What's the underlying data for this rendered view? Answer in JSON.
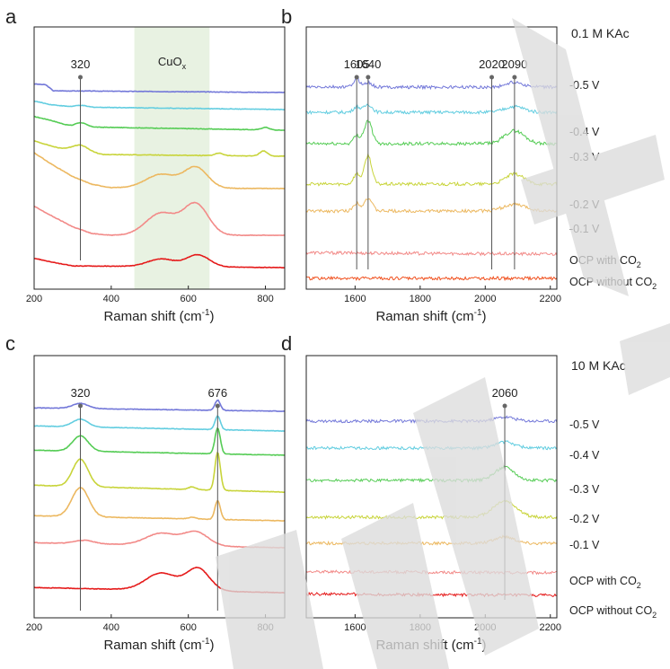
{
  "figure": {
    "watermark_text": "ACCEPTED",
    "panels": [
      {
        "id": "a",
        "label": "a",
        "xlabel": "Raman shift (cm",
        "xlabel_sup": "-1",
        "xlabel_end": ")",
        "xlim": [
          200,
          850
        ],
        "xticks": [
          "200",
          "400",
          "600",
          "800"
        ],
        "region": {
          "from": 460,
          "to": 655,
          "label": "CuO",
          "label_sub": "x"
        },
        "markers": [
          {
            "label": "320",
            "x": 320
          }
        ],
        "side_labels": [],
        "condition": ""
      },
      {
        "id": "b",
        "label": "b",
        "xlabel": "Raman shift (cm",
        "xlabel_sup": "-1",
        "xlabel_end": ")",
        "xlim": [
          1450,
          2220
        ],
        "xticks": [
          "1600",
          "1800",
          "2000",
          "2200"
        ],
        "markers": [
          {
            "label": "1605",
            "x": 1605
          },
          {
            "label": "1640",
            "x": 1640
          },
          {
            "label": "2020",
            "x": 2020
          },
          {
            "label": "2090",
            "x": 2090
          }
        ],
        "side_labels": [
          {
            "text": "-0.5 V",
            "sub": ""
          },
          {
            "text": "-0.4 V",
            "sub": ""
          },
          {
            "text": "-0.3 V",
            "sub": ""
          },
          {
            "text": "-0.2 V",
            "sub": ""
          },
          {
            "text": "-0.1 V",
            "sub": ""
          },
          {
            "text": "OCP with CO",
            "sub": "2"
          },
          {
            "text": "OCP without CO",
            "sub": "2"
          }
        ],
        "condition": "0.1 M KAc"
      },
      {
        "id": "c",
        "label": "c",
        "xlabel": "Raman shift (cm",
        "xlabel_sup": "-1",
        "xlabel_end": ")",
        "xlim": [
          200,
          850
        ],
        "xticks": [
          "200",
          "400",
          "600",
          "800"
        ],
        "markers": [
          {
            "label": "320",
            "x": 320
          },
          {
            "label": "676",
            "x": 676
          }
        ],
        "side_labels": [],
        "condition": ""
      },
      {
        "id": "d",
        "label": "d",
        "xlabel": "Raman shift (cm",
        "xlabel_sup": "-1",
        "xlabel_end": ")",
        "xlim": [
          1450,
          2220
        ],
        "xticks": [
          "1600",
          "1800",
          "2000",
          "2200"
        ],
        "markers": [
          {
            "label": "2060",
            "x": 2060
          }
        ],
        "side_labels": [
          {
            "text": "-0.5 V",
            "sub": ""
          },
          {
            "text": "-0.4 V",
            "sub": ""
          },
          {
            "text": "-0.3 V",
            "sub": ""
          },
          {
            "text": "-0.2 V",
            "sub": ""
          },
          {
            "text": "-0.1 V",
            "sub": ""
          },
          {
            "text": "OCP with CO",
            "sub": "2"
          },
          {
            "text": "OCP without CO",
            "sub": "2"
          }
        ],
        "condition": "10 M KAc"
      }
    ]
  },
  "chart_data": [
    {
      "type": "line",
      "panel": "a",
      "title": "",
      "xlabel": "Raman shift (cm-1)",
      "ylabel": "",
      "xlim": [
        200,
        850
      ],
      "colors": [
        "#7378d9",
        "#62cde0",
        "#55cc55",
        "#c8d43a",
        "#ecb860",
        "#f28a88",
        "#e51a1a"
      ],
      "series": [
        {
          "name": "-0.5 V",
          "offset": 6.4,
          "base": [
            [
              200,
              0.5
            ],
            [
              230,
              0.45
            ],
            [
              250,
              0.1
            ],
            [
              850,
              0
            ]
          ],
          "peaks": []
        },
        {
          "name": "-0.4 V",
          "offset": 5.6,
          "base": [
            [
              200,
              0.5
            ],
            [
              240,
              0.3
            ],
            [
              300,
              0.15
            ],
            [
              850,
              0
            ]
          ],
          "peaks": [
            [
              320,
              0.1,
              15
            ]
          ]
        },
        {
          "name": "-0.3 V",
          "offset": 4.55,
          "base": [
            [
              200,
              0.8
            ],
            [
              240,
              0.6
            ],
            [
              300,
              0.2
            ],
            [
              850,
              0
            ]
          ],
          "peaks": [
            [
              320,
              0.25,
              15
            ],
            [
              800,
              0.15,
              10
            ]
          ]
        },
        {
          "name": "-0.2 V",
          "offset": 3.25,
          "base": [
            [
              200,
              0.9
            ],
            [
              260,
              0.5
            ],
            [
              380,
              0.1
            ],
            [
              850,
              0
            ]
          ],
          "peaks": [
            [
              320,
              0.35,
              20
            ],
            [
              680,
              0.15,
              10
            ],
            [
              795,
              0.3,
              10
            ]
          ]
        },
        {
          "name": "-0.1 V",
          "offset": 1.85,
          "base": [
            [
              200,
              2.1
            ],
            [
              240,
              1.5
            ],
            [
              300,
              0.7
            ],
            [
              350,
              0.25
            ],
            [
              400,
              0.05
            ],
            [
              850,
              0
            ]
          ],
          "peaks": [
            [
              530,
              0.8,
              40
            ],
            [
              620,
              1.2,
              30
            ]
          ]
        },
        {
          "name": "OCP with CO2",
          "offset": 0.7,
          "base": [
            [
              200,
              1.7
            ],
            [
              240,
              1.2
            ],
            [
              300,
              0.5
            ],
            [
              350,
              0.1
            ],
            [
              400,
              0
            ],
            [
              850,
              0
            ]
          ],
          "peaks": [
            [
              530,
              1.3,
              40
            ],
            [
              620,
              1.8,
              32
            ]
          ]
        },
        {
          "name": "OCP without CO2",
          "offset": 0.0,
          "base": [
            [
              200,
              0.55
            ],
            [
              250,
              0.3
            ],
            [
              300,
              0.1
            ],
            [
              850,
              0
            ]
          ],
          "peaks": [
            [
              530,
              0.45,
              35
            ],
            [
              625,
              0.7,
              30
            ]
          ]
        }
      ]
    },
    {
      "type": "line",
      "panel": "b",
      "title": "",
      "xlabel": "Raman shift (cm-1)",
      "ylabel": "",
      "xlim": [
        1450,
        2220
      ],
      "colors": [
        "#7378d9",
        "#62cde0",
        "#55cc55",
        "#c8d43a",
        "#ecb860",
        "#f28a88",
        "#f0501e"
      ],
      "series": [
        {
          "name": "-0.5 V",
          "offset": 6.1,
          "base": [
            [
              1450,
              0
            ],
            [
              2220,
              0
            ]
          ],
          "peaks": [
            [
              1605,
              0.55,
              10
            ],
            [
              1640,
              0.3,
              12
            ],
            [
              2090,
              0.35,
              25
            ]
          ]
        },
        {
          "name": "-0.4 V",
          "offset": 5.0,
          "base": [
            [
              1450,
              0
            ],
            [
              2220,
              0
            ]
          ],
          "peaks": [
            [
              1605,
              0.4,
              10
            ],
            [
              1640,
              0.55,
              12
            ],
            [
              2090,
              0.4,
              30
            ]
          ]
        },
        {
          "name": "-0.3 V",
          "offset": 3.6,
          "base": [
            [
              1450,
              0
            ],
            [
              2220,
              0
            ]
          ],
          "peaks": [
            [
              1605,
              0.55,
              10
            ],
            [
              1640,
              1.6,
              12
            ],
            [
              2090,
              0.9,
              30
            ]
          ]
        },
        {
          "name": "-0.2 V",
          "offset": 2.1,
          "base": [
            [
              1450,
              0
            ],
            [
              2220,
              0
            ]
          ],
          "peaks": [
            [
              1605,
              0.7,
              10
            ],
            [
              1640,
              2.0,
              11
            ],
            [
              2090,
              0.7,
              28
            ]
          ]
        },
        {
          "name": "-0.1 V",
          "offset": 1.35,
          "base": [
            [
              1450,
              0
            ],
            [
              2220,
              0
            ]
          ],
          "peaks": [
            [
              1605,
              0.55,
              10
            ],
            [
              1640,
              0.9,
              12
            ],
            [
              2090,
              0.45,
              35
            ]
          ]
        },
        {
          "name": "OCP with CO2",
          "offset": 0.55,
          "base": [
            [
              1450,
              0.1
            ],
            [
              1800,
              0.05
            ],
            [
              2220,
              0
            ]
          ],
          "peaks": []
        },
        {
          "name": "OCP without CO2",
          "offset": 0.0,
          "base": [
            [
              1450,
              0
            ],
            [
              2220,
              0
            ]
          ],
          "peaks": []
        }
      ]
    },
    {
      "type": "line",
      "panel": "c",
      "title": "",
      "xlabel": "Raman shift (cm-1)",
      "ylabel": "",
      "xlim": [
        200,
        850
      ],
      "colors": [
        "#7378d9",
        "#62cde0",
        "#55cc55",
        "#c8d43a",
        "#ecb860",
        "#f28a88",
        "#e51a1a"
      ],
      "series": [
        {
          "name": "-0.5 V",
          "offset": 8.6,
          "base": [
            [
              200,
              0.2
            ],
            [
              850,
              0
            ]
          ],
          "peaks": [
            [
              320,
              0.3,
              20
            ],
            [
              676,
              0.6,
              7
            ]
          ]
        },
        {
          "name": "-0.4 V",
          "offset": 7.6,
          "base": [
            [
              200,
              0.3
            ],
            [
              850,
              0
            ]
          ],
          "peaks": [
            [
              320,
              0.45,
              20
            ],
            [
              676,
              0.8,
              7
            ]
          ]
        },
        {
          "name": "-0.3 V",
          "offset": 6.5,
          "base": [
            [
              200,
              0.3
            ],
            [
              850,
              0
            ]
          ],
          "peaks": [
            [
              320,
              0.9,
              20
            ],
            [
              676,
              1.5,
              7
            ]
          ]
        },
        {
          "name": "-0.2 V",
          "offset": 4.7,
          "base": [
            [
              200,
              0.4
            ],
            [
              850,
              0
            ]
          ],
          "peaks": [
            [
              320,
              1.6,
              20
            ],
            [
              676,
              2.2,
              7
            ],
            [
              610,
              0.15,
              10
            ]
          ]
        },
        {
          "name": "-0.1 V",
          "offset": 3.5,
          "base": [
            [
              200,
              0.3
            ],
            [
              850,
              0
            ]
          ],
          "peaks": [
            [
              320,
              1.7,
              22
            ],
            [
              676,
              1.1,
              7
            ],
            [
              610,
              0.1,
              10
            ]
          ]
        },
        {
          "name": "OCP with CO2",
          "offset": 2.0,
          "base": [
            [
              200,
              0.3
            ],
            [
              850,
              0
            ]
          ],
          "peaks": [
            [
              330,
              0.2,
              25
            ],
            [
              530,
              0.7,
              40
            ],
            [
              620,
              0.8,
              32
            ]
          ]
        },
        {
          "name": "OCP without CO2",
          "offset": 0.0,
          "base": [
            [
              200,
              0.3
            ],
            [
              850,
              0
            ]
          ],
          "peaks": [
            [
              530,
              1.0,
              40
            ],
            [
              625,
              1.3,
              30
            ]
          ]
        }
      ]
    },
    {
      "type": "line",
      "panel": "d",
      "title": "",
      "xlabel": "Raman shift (cm-1)",
      "ylabel": "",
      "xlim": [
        1450,
        2220
      ],
      "colors": [
        "#7378d9",
        "#62cde0",
        "#55cc55",
        "#c8d43a",
        "#ecb860",
        "#f28a88",
        "#e51a1a"
      ],
      "series": [
        {
          "name": "-0.5 V",
          "offset": 6.2,
          "base": [
            [
              1450,
              0
            ],
            [
              2220,
              0
            ]
          ],
          "peaks": [
            [
              2060,
              0.3,
              30
            ]
          ]
        },
        {
          "name": "-0.4 V",
          "offset": 5.1,
          "base": [
            [
              1450,
              0
            ],
            [
              2220,
              0
            ]
          ],
          "peaks": [
            [
              2060,
              0.45,
              30
            ]
          ]
        },
        {
          "name": "-0.3 V",
          "offset": 4.0,
          "base": [
            [
              1450,
              0
            ],
            [
              2220,
              0
            ]
          ],
          "peaks": [
            [
              2060,
              1.0,
              30
            ]
          ]
        },
        {
          "name": "-0.2 V",
          "offset": 2.8,
          "base": [
            [
              1450,
              0
            ],
            [
              2220,
              0
            ]
          ],
          "peaks": [
            [
              2060,
              1.2,
              35
            ]
          ]
        },
        {
          "name": "-0.1 V",
          "offset": 1.8,
          "base": [
            [
              1450,
              0
            ],
            [
              2220,
              0
            ]
          ],
          "peaks": [
            [
              2060,
              0.5,
              30
            ]
          ]
        },
        {
          "name": "OCP with CO2",
          "offset": 0.8,
          "base": [
            [
              1450,
              0.1
            ],
            [
              2220,
              0
            ]
          ],
          "peaks": []
        },
        {
          "name": "OCP without CO2",
          "offset": 0.0,
          "base": [
            [
              1450,
              0.1
            ],
            [
              2220,
              0
            ]
          ],
          "peaks": []
        }
      ]
    }
  ]
}
